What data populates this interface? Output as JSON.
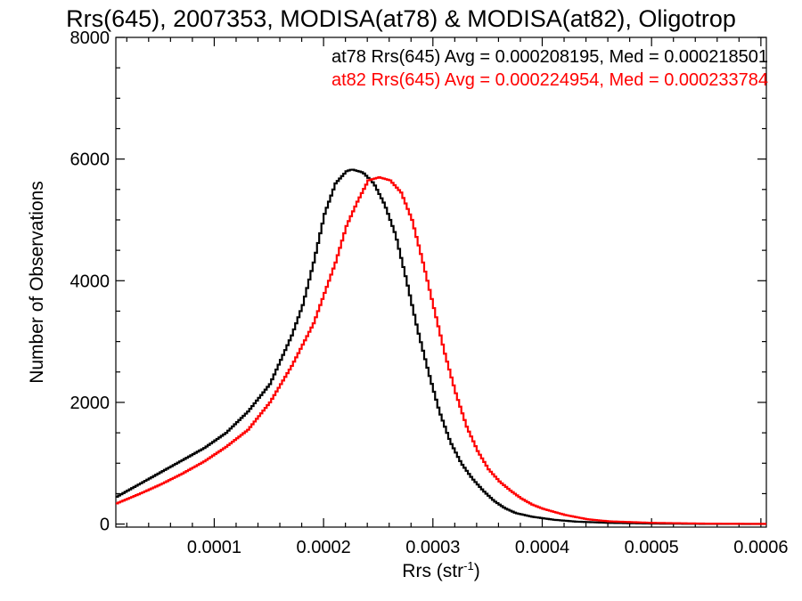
{
  "chart_data": {
    "type": "line",
    "title": "Rrs(645), 2007353, MODISA(at78) & MODISA(at82), Oligotrop",
    "xlabel_main": "Rrs (str",
    "xlabel_sup": "-1",
    "xlabel_close": ")",
    "ylabel": "Number of Observations",
    "xlim": [
      1e-05,
      0.000605
    ],
    "ylim": [
      -50,
      8000
    ],
    "x_ticks": [
      {
        "value": 0.0001,
        "label": "0.0001"
      },
      {
        "value": 0.0002,
        "label": "0.0002"
      },
      {
        "value": 0.0003,
        "label": "0.0003"
      },
      {
        "value": 0.0004,
        "label": "0.0004"
      },
      {
        "value": 0.0005,
        "label": "0.0005"
      },
      {
        "value": 0.0006,
        "label": "0.0006"
      }
    ],
    "y_ticks": [
      {
        "value": 0,
        "label": "0"
      },
      {
        "value": 2000,
        "label": "2000"
      },
      {
        "value": 4000,
        "label": "4000"
      },
      {
        "value": 6000,
        "label": "6000"
      },
      {
        "value": 8000,
        "label": "8000"
      }
    ],
    "legend_entries": [
      {
        "text": "at78 Rrs(645) Avg = 0.000208195, Med = 0.000218501",
        "color": "#000000"
      },
      {
        "text": "at82 Rrs(645) Avg = 0.000224954, Med = 0.000233784",
        "color": "#ff0000"
      }
    ],
    "legend_position": "top-right",
    "grid": false,
    "series": [
      {
        "color": "#000000",
        "points": [
          [
            1e-05,
            450
          ],
          [
            3e-05,
            650
          ],
          [
            5e-05,
            850
          ],
          [
            7e-05,
            1050
          ],
          [
            9e-05,
            1250
          ],
          [
            0.00011,
            1500
          ],
          [
            0.00013,
            1850
          ],
          [
            0.00015,
            2300
          ],
          [
            0.00017,
            3100
          ],
          [
            0.00018,
            3600
          ],
          [
            0.00019,
            4300
          ],
          [
            0.0002,
            5100
          ],
          [
            0.00021,
            5600
          ],
          [
            0.00022,
            5800
          ],
          [
            0.000225,
            5830
          ],
          [
            0.000235,
            5780
          ],
          [
            0.000245,
            5600
          ],
          [
            0.000255,
            5250
          ],
          [
            0.000265,
            4750
          ],
          [
            0.000275,
            4000
          ],
          [
            0.000285,
            3200
          ],
          [
            0.000295,
            2500
          ],
          [
            0.000305,
            1850
          ],
          [
            0.000315,
            1350
          ],
          [
            0.000325,
            1000
          ],
          [
            0.000335,
            750
          ],
          [
            0.000345,
            550
          ],
          [
            0.000355,
            380
          ],
          [
            0.000365,
            260
          ],
          [
            0.000375,
            180
          ],
          [
            0.00039,
            120
          ],
          [
            0.00041,
            70
          ],
          [
            0.00043,
            40
          ],
          [
            0.00046,
            20
          ],
          [
            0.0005,
            8
          ],
          [
            0.00055,
            3
          ],
          [
            0.0006,
            1
          ]
        ]
      },
      {
        "color": "#ff0000",
        "points": [
          [
            1e-05,
            340
          ],
          [
            3e-05,
            490
          ],
          [
            5e-05,
            650
          ],
          [
            7e-05,
            830
          ],
          [
            9e-05,
            1030
          ],
          [
            0.00011,
            1270
          ],
          [
            0.00013,
            1550
          ],
          [
            0.00015,
            2000
          ],
          [
            0.00017,
            2600
          ],
          [
            0.00019,
            3300
          ],
          [
            0.0002,
            3800
          ],
          [
            0.00021,
            4300
          ],
          [
            0.00022,
            4900
          ],
          [
            0.00023,
            5300
          ],
          [
            0.00024,
            5650
          ],
          [
            0.00025,
            5700
          ],
          [
            0.00026,
            5650
          ],
          [
            0.00027,
            5450
          ],
          [
            0.00028,
            5000
          ],
          [
            0.00029,
            4300
          ],
          [
            0.0003,
            3550
          ],
          [
            0.00031,
            2800
          ],
          [
            0.00032,
            2150
          ],
          [
            0.00033,
            1600
          ],
          [
            0.00034,
            1200
          ],
          [
            0.00035,
            900
          ],
          [
            0.00036,
            700
          ],
          [
            0.00037,
            550
          ],
          [
            0.00038,
            420
          ],
          [
            0.00039,
            320
          ],
          [
            0.0004,
            250
          ],
          [
            0.00042,
            150
          ],
          [
            0.00044,
            80
          ],
          [
            0.00046,
            45
          ],
          [
            0.0005,
            20
          ],
          [
            0.00055,
            7
          ],
          [
            0.0006,
            3
          ]
        ]
      }
    ]
  }
}
